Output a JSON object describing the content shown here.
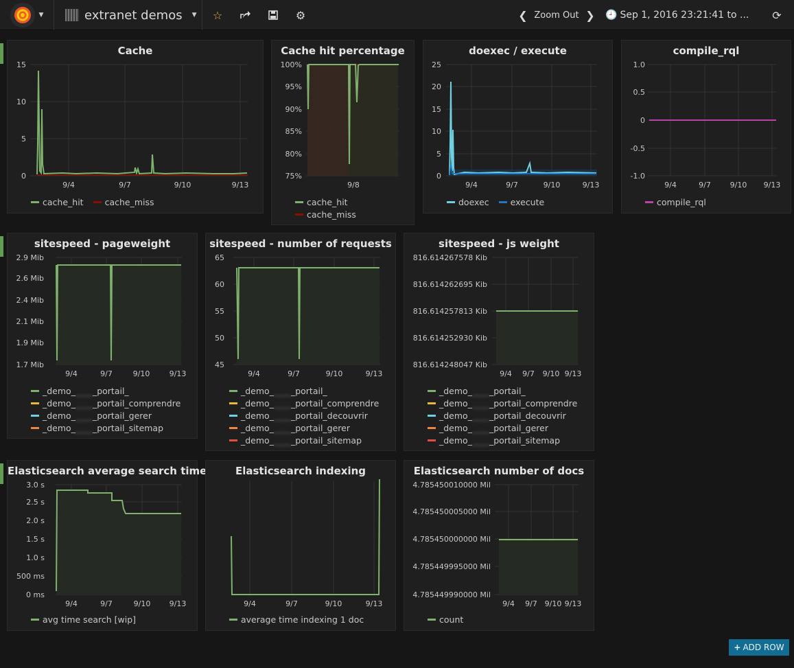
{
  "topbar": {
    "dashboard_title": "extranet demos",
    "zoom_out_label": "Zoom Out",
    "time_range": "Sep 1, 2016 23:21:41 to ...",
    "icons": [
      "grafana-logo-icon",
      "star-icon",
      "share-icon",
      "save-icon",
      "settings-icon",
      "chevron-left-icon",
      "chevron-right-icon",
      "clock-icon",
      "refresh-icon"
    ]
  },
  "add_row_label": "ADD ROW",
  "colors": {
    "green": "#7eb26d",
    "yellow": "#eab839",
    "light_blue": "#6ed0e0",
    "orange": "#ef843c",
    "red": "#e24d42",
    "dark_red": "#890f02",
    "blue": "#1f78c1",
    "purple": "#ba43a9",
    "row_marker": "#629e51",
    "add_row": "#136d92"
  },
  "panels": {
    "cache": {
      "title": "Cache",
      "legend": [
        {
          "label": "cache_hit",
          "color": "#7eb26d"
        },
        {
          "label": "cache_miss",
          "color": "#890f02"
        }
      ],
      "y_ticks": [
        "15",
        "10",
        "5",
        "0"
      ],
      "x_ticks": [
        "9/4",
        "9/7",
        "9/10",
        "9/13"
      ]
    },
    "cache_hit_pct": {
      "title": "Cache hit percentage",
      "legend": [
        {
          "label": "cache_hit",
          "color": "#7eb26d"
        },
        {
          "label": "cache_miss",
          "color": "#890f02"
        }
      ],
      "y_ticks": [
        "100%",
        "95%",
        "90%",
        "85%",
        "80%",
        "75%"
      ],
      "x_ticks": [
        "9/8"
      ]
    },
    "doexec": {
      "title": "doexec / execute",
      "legend": [
        {
          "label": "doexec",
          "color": "#6ed0e0"
        },
        {
          "label": "execute",
          "color": "#1f78c1"
        }
      ],
      "y_ticks": [
        "25",
        "20",
        "15",
        "10",
        "5",
        "0"
      ],
      "x_ticks": [
        "9/4",
        "9/7",
        "9/10",
        "9/13"
      ]
    },
    "compile_rql": {
      "title": "compile_rql",
      "legend": [
        {
          "label": "compile_rql",
          "color": "#ba43a9"
        }
      ],
      "y_ticks": [
        "1.0",
        "0.5",
        "0",
        "-0.5",
        "-1.0"
      ],
      "x_ticks": [
        "9/4",
        "9/7",
        "9/10",
        "9/13"
      ]
    },
    "pageweight": {
      "title": "sitespeed - pageweight",
      "legend": [
        {
          "pre": "_demo_",
          "blur": "____",
          "post": "_portail_",
          "color": "#7eb26d"
        },
        {
          "pre": "_demo_",
          "blur": "____",
          "post": "_portail_comprendre",
          "color": "#eab839"
        },
        {
          "pre": "_demo_",
          "blur": "____",
          "post": "_portail_gerer",
          "color": "#6ed0e0"
        },
        {
          "pre": "_demo_",
          "blur": "____",
          "post": "_portail_sitemap",
          "color": "#ef843c"
        }
      ],
      "y_ticks": [
        "2.9 Mib",
        "2.6 Mib",
        "2.4 Mib",
        "2.1 Mib",
        "1.9 Mib",
        "1.7 Mib"
      ],
      "x_ticks": [
        "9/4",
        "9/7",
        "9/10",
        "9/13"
      ]
    },
    "requests": {
      "title": "sitespeed - number of requests",
      "legend": [
        {
          "pre": "_demo_",
          "blur": "____",
          "post": "_portail_",
          "color": "#7eb26d"
        },
        {
          "pre": "_demo_",
          "blur": "____",
          "post": "_portail_comprendre",
          "color": "#eab839"
        },
        {
          "pre": "_demo_",
          "blur": "____",
          "post": "_portail_decouvrir",
          "color": "#6ed0e0"
        },
        {
          "pre": "_demo_",
          "blur": "____",
          "post": "_portail_gerer",
          "color": "#ef843c"
        },
        {
          "pre": "_demo_",
          "blur": "____",
          "post": "_portail_sitemap",
          "color": "#e24d42"
        }
      ],
      "y_ticks": [
        "65",
        "60",
        "55",
        "50",
        "45"
      ],
      "x_ticks": [
        "9/4",
        "9/7",
        "9/10",
        "9/13"
      ]
    },
    "jsweight": {
      "title": "sitespeed - js weight",
      "legend": [
        {
          "pre": "_demo_",
          "blur": "____",
          "post": "_portail_",
          "color": "#7eb26d"
        },
        {
          "pre": "_demo_",
          "blur": "____",
          "post": "_portail_comprendre",
          "color": "#eab839"
        },
        {
          "pre": "_demo_",
          "blur": "____",
          "post": "_portail_decouvrir",
          "color": "#6ed0e0"
        },
        {
          "pre": "_demo_",
          "blur": "____",
          "post": "_portail_gerer",
          "color": "#ef843c"
        },
        {
          "pre": "_demo_",
          "blur": "____",
          "post": "_portail_sitemap",
          "color": "#e24d42"
        }
      ],
      "y_ticks": [
        "816.614267578 Kib",
        "816.614262695 Kib",
        "816.614257813 Kib",
        "816.614252930 Kib",
        "816.614248047 Kib"
      ],
      "x_ticks": [
        "9/4",
        "9/7",
        "9/10",
        "9/13"
      ]
    },
    "es_search": {
      "title": "Elasticsearch average search time",
      "legend": [
        {
          "label": "avg time search [wip]",
          "color": "#7eb26d"
        }
      ],
      "y_ticks": [
        "3.0 s",
        "2.5 s",
        "2.0 s",
        "1.5 s",
        "1.0 s",
        "500 ms",
        "0 ms"
      ],
      "x_ticks": [
        "9/4",
        "9/7",
        "9/10",
        "9/13"
      ]
    },
    "es_indexing": {
      "title": "Elasticsearch indexing",
      "legend": [
        {
          "label": "average time indexing 1 doc",
          "color": "#7eb26d"
        }
      ],
      "x_ticks": [
        "9/4",
        "9/7",
        "9/10",
        "9/13"
      ]
    },
    "es_docs": {
      "title": "Elasticsearch number of docs",
      "legend": [
        {
          "label": "count",
          "color": "#7eb26d"
        }
      ],
      "y_ticks": [
        "4.785450010000 Mil",
        "4.785450005000 Mil",
        "4.785450000000 Mil",
        "4.785449995000 Mil",
        "4.785449990000 Mil"
      ],
      "x_ticks": [
        "9/4",
        "9/7",
        "9/10",
        "9/13"
      ]
    }
  }
}
